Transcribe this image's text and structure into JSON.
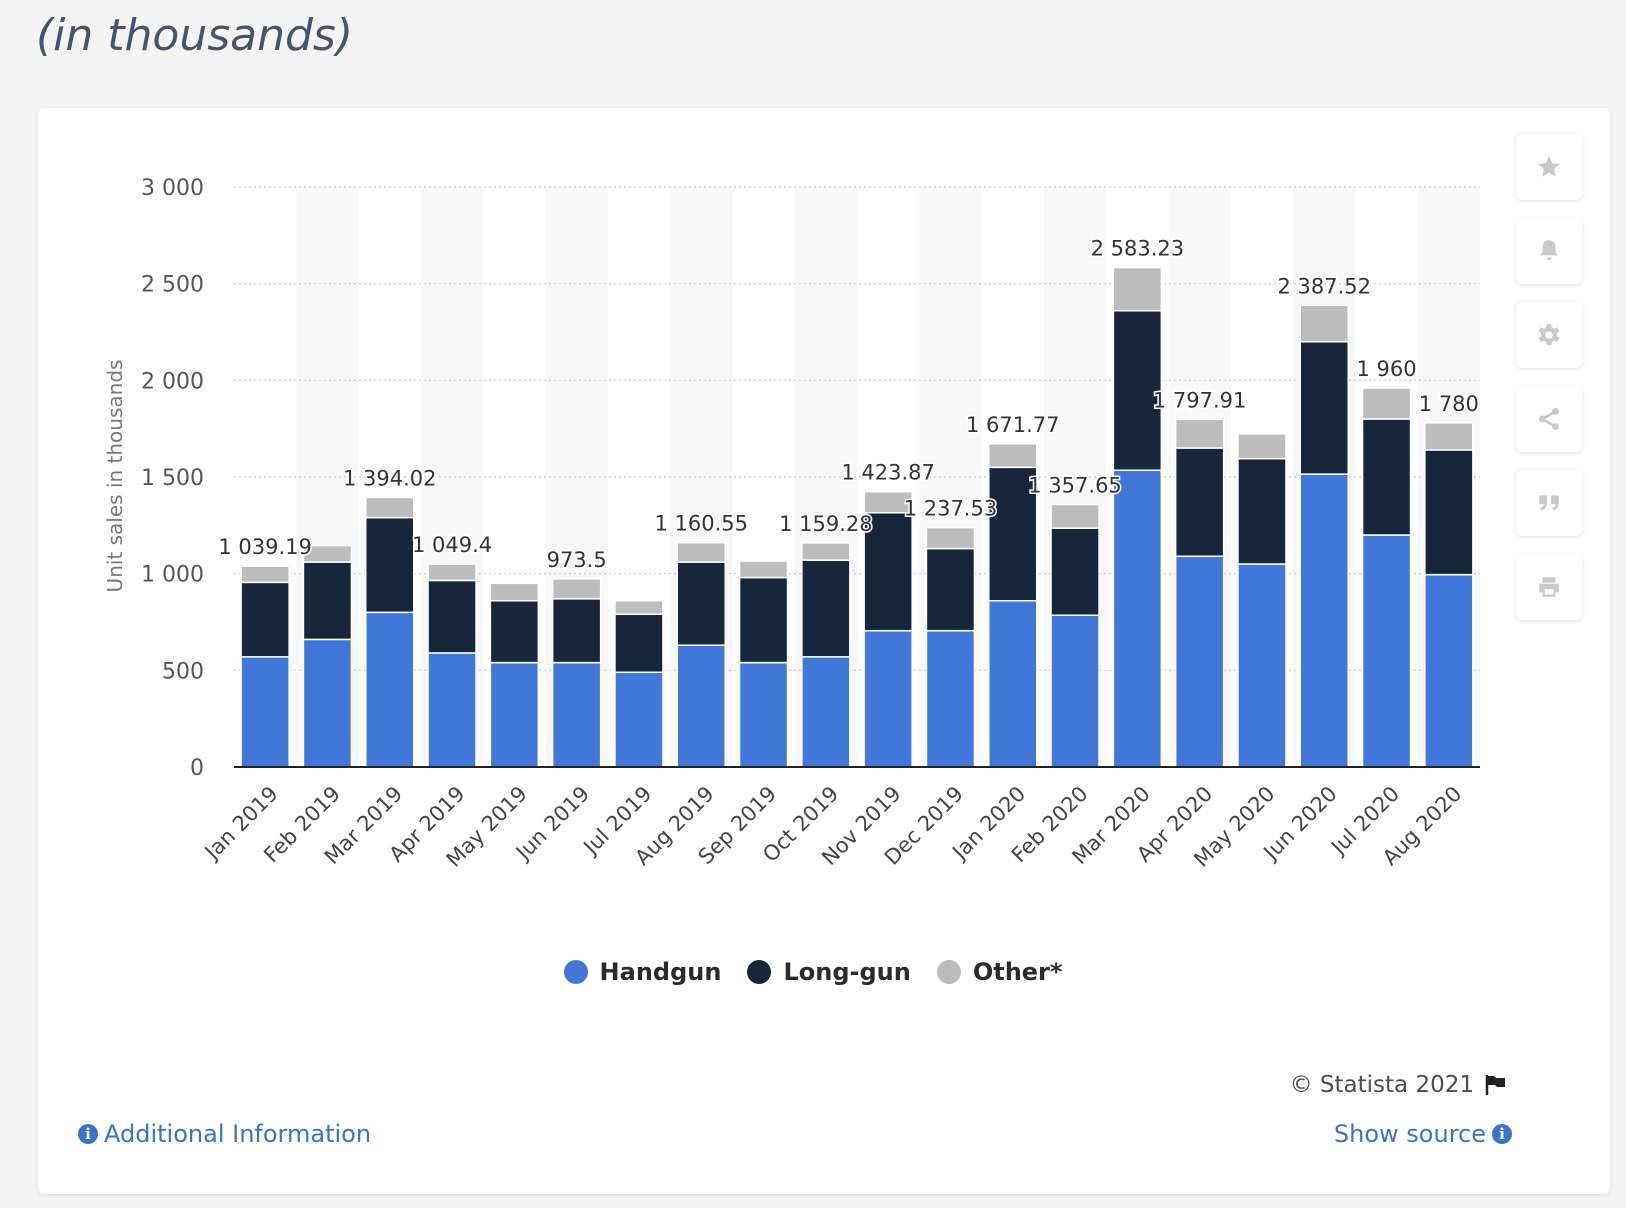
{
  "heading": "(in thousands)",
  "toolbar": [
    "star-icon",
    "bell-icon",
    "gear-icon",
    "share-icon",
    "quote-icon",
    "print-icon"
  ],
  "colors": {
    "handgun": "#4177d8",
    "longgun": "#17263b",
    "other": "#bcbcbc",
    "link": "#3a74c9"
  },
  "chart_data": {
    "type": "bar",
    "stacked": true,
    "ylabel": "Unit sales in thousands",
    "ylim": [
      0,
      3000
    ],
    "yticks": [
      "0",
      "500",
      "1 000",
      "1 500",
      "2 000",
      "2 500",
      "3 000"
    ],
    "categories": [
      "Jan 2019",
      "Feb 2019",
      "Mar 2019",
      "Apr 2019",
      "May 2019",
      "Jun 2019",
      "Jul 2019",
      "Aug 2019",
      "Sep 2019",
      "Oct 2019",
      "Nov 2019",
      "Dec 2019",
      "Jan 2020",
      "Feb 2020",
      "Mar 2020",
      "Apr 2020",
      "May 2020",
      "Jun 2020",
      "Jul 2020",
      "Aug 2020"
    ],
    "series": [
      {
        "name": "Handgun",
        "values": [
          570,
          660,
          800,
          590,
          540,
          540,
          490,
          630,
          540,
          570,
          705,
          705,
          860,
          785,
          1535,
          1090,
          1050,
          1515,
          1200,
          995
        ]
      },
      {
        "name": "Long-gun",
        "values": [
          385,
          400,
          490,
          375,
          320,
          330,
          300,
          430,
          440,
          500,
          610,
          425,
          690,
          450,
          825,
          560,
          545,
          685,
          600,
          645
        ]
      },
      {
        "name": "Other*",
        "values": [
          84,
          85,
          104,
          84,
          90,
          103,
          70,
          100,
          85,
          89,
          109,
          108,
          122,
          123,
          223,
          148,
          128,
          188,
          160,
          140
        ]
      }
    ],
    "totals": [
      1039.19,
      1145,
      1394.02,
      1049.4,
      950,
      973.5,
      860,
      1160.55,
      1065,
      1159.28,
      1423.87,
      1237.53,
      1671.77,
      1357.65,
      2583.23,
      1797.91,
      1723,
      2387.52,
      1960,
      1780
    ],
    "total_labels": [
      "1 039.19",
      "",
      "1 394.02",
      "1 049.4",
      "",
      "973.5",
      "",
      "1 160.55",
      "",
      "1 159.28",
      "1 423.87",
      "1 237.53",
      "1 671.77",
      "1 357.65",
      "2 583.23",
      "1 797.91",
      "",
      "2 387.52",
      "1 960",
      "1 780"
    ],
    "legend_position": "bottom",
    "grid": true
  },
  "footer": {
    "copyright": "© Statista 2021",
    "additional_info": "Additional Information",
    "show_source": "Show source"
  }
}
